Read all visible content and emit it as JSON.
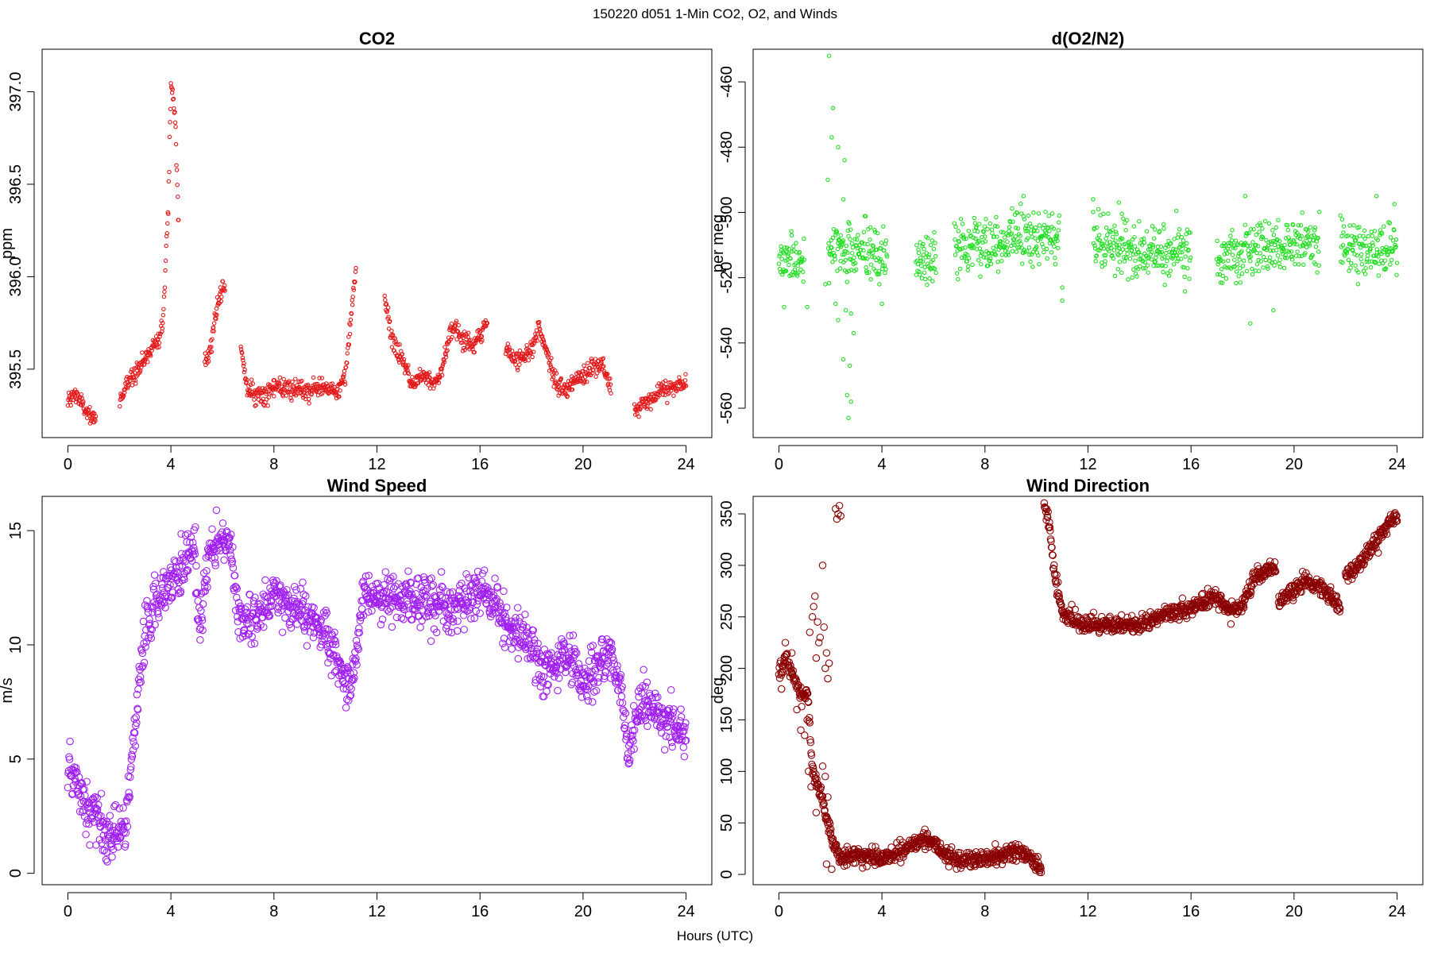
{
  "figure": {
    "suptitle": "150220   d051   1-Min CO2, O2, and Winds",
    "shared_xlabel": "Hours (UTC)"
  },
  "chart_data": [
    {
      "id": "co2",
      "type": "scatter",
      "title": "CO2",
      "xlabel": "",
      "ylabel": "ppm",
      "xlim": [
        -1,
        25
      ],
      "ylim": [
        395.13,
        397.23
      ],
      "xticks": [
        0,
        4,
        8,
        12,
        16,
        20,
        24
      ],
      "yticks": [
        395.5,
        396.0,
        396.5,
        397.0
      ],
      "ytick_labels": [
        "395.5",
        "396.0",
        "396.5",
        "397.0"
      ],
      "marker": "small-open-circle",
      "color": "#e31a1c",
      "anchors": [
        [
          0.0,
          395.32
        ],
        [
          0.3,
          395.37
        ],
        [
          0.6,
          395.3
        ],
        [
          0.9,
          395.22
        ],
        [
          1.1,
          395.25
        ],
        [
          2.0,
          395.33
        ],
        [
          2.5,
          395.47
        ],
        [
          3.0,
          395.55
        ],
        [
          3.3,
          395.63
        ],
        [
          3.5,
          395.67
        ],
        [
          3.7,
          395.76
        ],
        [
          3.9,
          396.4
        ],
        [
          4.0,
          397.05
        ],
        [
          4.15,
          396.9
        ],
        [
          4.3,
          396.3
        ],
        [
          5.3,
          395.52
        ],
        [
          5.6,
          395.65
        ],
        [
          5.8,
          395.85
        ],
        [
          6.0,
          395.96
        ],
        [
          6.1,
          395.92
        ],
        [
          6.7,
          395.62
        ],
        [
          7.0,
          395.38
        ],
        [
          7.5,
          395.36
        ],
        [
          8.0,
          395.4
        ],
        [
          9.0,
          395.38
        ],
        [
          10.0,
          395.4
        ],
        [
          10.5,
          395.38
        ],
        [
          10.8,
          395.48
        ],
        [
          11.0,
          395.8
        ],
        [
          11.2,
          396.05
        ],
        [
          12.3,
          395.88
        ],
        [
          12.6,
          395.65
        ],
        [
          13.0,
          395.55
        ],
        [
          13.4,
          395.41
        ],
        [
          13.8,
          395.48
        ],
        [
          14.2,
          395.43
        ],
        [
          14.5,
          395.48
        ],
        [
          14.8,
          395.68
        ],
        [
          15.0,
          395.73
        ],
        [
          15.4,
          395.65
        ],
        [
          15.8,
          395.63
        ],
        [
          16.1,
          395.72
        ],
        [
          16.3,
          395.76
        ],
        [
          17.0,
          395.59
        ],
        [
          17.5,
          395.55
        ],
        [
          18.0,
          395.62
        ],
        [
          18.3,
          395.72
        ],
        [
          18.6,
          395.6
        ],
        [
          18.9,
          395.43
        ],
        [
          19.3,
          395.38
        ],
        [
          19.8,
          395.45
        ],
        [
          20.3,
          395.5
        ],
        [
          20.7,
          395.53
        ],
        [
          21.0,
          395.42
        ],
        [
          21.1,
          395.4
        ],
        [
          22.0,
          395.28
        ],
        [
          22.5,
          395.33
        ],
        [
          23.0,
          395.38
        ],
        [
          23.5,
          395.4
        ],
        [
          24.0,
          395.42
        ]
      ],
      "gaps": [
        [
          1.1,
          2.0
        ],
        [
          4.3,
          5.3
        ],
        [
          6.1,
          6.7
        ],
        [
          11.2,
          12.3
        ],
        [
          16.3,
          17.0
        ],
        [
          21.1,
          22.0
        ]
      ],
      "noise": 0.025
    },
    {
      "id": "o2",
      "type": "scatter",
      "title": "d(O2/N2)",
      "xlabel": "",
      "ylabel": "per meg",
      "xlim": [
        -1,
        25
      ],
      "ylim": [
        -569,
        -450
      ],
      "xticks": [
        0,
        4,
        8,
        12,
        16,
        20,
        24
      ],
      "yticks": [
        -560,
        -540,
        -520,
        -500,
        -480,
        -460
      ],
      "ytick_labels": [
        "-560",
        "-540",
        "-520",
        "-500",
        "-480",
        "-460"
      ],
      "marker": "small-open-circle",
      "color": "#22dd22",
      "anchors": [
        [
          0.0,
          -514
        ],
        [
          0.5,
          -514
        ],
        [
          1.0,
          -516
        ],
        [
          1.9,
          -512
        ],
        [
          2.2,
          -510
        ],
        [
          2.5,
          -512
        ],
        [
          3.0,
          -513
        ],
        [
          3.5,
          -512
        ],
        [
          4.2,
          -515
        ],
        [
          5.3,
          -515
        ],
        [
          5.7,
          -514
        ],
        [
          6.1,
          -515
        ],
        [
          6.8,
          -511
        ],
        [
          8.0,
          -509
        ],
        [
          9.0,
          -508
        ],
        [
          10.0,
          -507
        ],
        [
          10.9,
          -508
        ],
        [
          12.2,
          -508
        ],
        [
          13.0,
          -510
        ],
        [
          14.0,
          -512
        ],
        [
          15.0,
          -513
        ],
        [
          16.0,
          -513
        ],
        [
          17.0,
          -515
        ],
        [
          18.0,
          -513
        ],
        [
          19.0,
          -511
        ],
        [
          20.0,
          -510
        ],
        [
          21.0,
          -510
        ],
        [
          21.8,
          -509
        ],
        [
          22.5,
          -510
        ],
        [
          23.2,
          -511
        ],
        [
          24.0,
          -511
        ]
      ],
      "gaps": [
        [
          1.0,
          1.9
        ],
        [
          4.2,
          5.3
        ],
        [
          6.1,
          6.8
        ],
        [
          10.9,
          12.2
        ],
        [
          16.0,
          17.0
        ],
        [
          21.0,
          21.8
        ]
      ],
      "noise": 4.2,
      "extra_points": [
        [
          1.95,
          -452
        ],
        [
          2.1,
          -468
        ],
        [
          2.05,
          -477
        ],
        [
          2.3,
          -480
        ],
        [
          2.55,
          -484
        ],
        [
          2.5,
          -496
        ],
        [
          1.9,
          -490
        ],
        [
          2.4,
          -507
        ],
        [
          2.7,
          -503
        ],
        [
          2.2,
          -528
        ],
        [
          2.3,
          -533
        ],
        [
          2.6,
          -530
        ],
        [
          2.8,
          -531
        ],
        [
          2.5,
          -545
        ],
        [
          2.75,
          -547
        ],
        [
          2.65,
          -556
        ],
        [
          2.8,
          -558
        ],
        [
          2.7,
          -563
        ],
        [
          2.9,
          -537
        ],
        [
          1.8,
          -522
        ],
        [
          11.0,
          -527
        ],
        [
          11.0,
          -523
        ],
        [
          0.2,
          -529
        ],
        [
          1.1,
          -529
        ],
        [
          4.0,
          -528
        ],
        [
          3.9,
          -522
        ],
        [
          18.3,
          -534
        ],
        [
          19.2,
          -530
        ],
        [
          18.1,
          -495
        ],
        [
          9.5,
          -495
        ],
        [
          23.2,
          -495
        ],
        [
          13.2,
          -497
        ],
        [
          12.2,
          -496
        ]
      ]
    },
    {
      "id": "wind-speed",
      "type": "scatter",
      "title": "Wind Speed",
      "xlabel": "",
      "ylabel": "m/s",
      "xlim": [
        -1,
        25
      ],
      "ylim": [
        -0.5,
        16.5
      ],
      "xticks": [
        0,
        4,
        8,
        12,
        16,
        20,
        24
      ],
      "yticks": [
        0,
        5,
        10,
        15
      ],
      "ytick_labels": [
        "0",
        "5",
        "10",
        "15"
      ],
      "marker": "large-open-circle",
      "color": "#a020f0",
      "anchors": [
        [
          0.0,
          4.5
        ],
        [
          0.5,
          3.5
        ],
        [
          1.0,
          2.5
        ],
        [
          1.5,
          1.5
        ],
        [
          2.0,
          1.5
        ],
        [
          2.3,
          2.5
        ],
        [
          2.5,
          5.0
        ],
        [
          2.8,
          9.0
        ],
        [
          3.0,
          10.5
        ],
        [
          3.5,
          12.0
        ],
        [
          4.0,
          12.5
        ],
        [
          4.5,
          13.5
        ],
        [
          4.9,
          14.5
        ],
        [
          5.1,
          10.5
        ],
        [
          5.5,
          14.0
        ],
        [
          6.0,
          14.5
        ],
        [
          6.3,
          14.5
        ],
        [
          6.6,
          11.5
        ],
        [
          7.0,
          11.0
        ],
        [
          8.0,
          12.0
        ],
        [
          9.0,
          11.5
        ],
        [
          10.0,
          10.5
        ],
        [
          10.5,
          9.0
        ],
        [
          11.0,
          8.0
        ],
        [
          11.5,
          12.5
        ],
        [
          12.0,
          12.0
        ],
        [
          13.0,
          12.0
        ],
        [
          14.0,
          12.0
        ],
        [
          15.0,
          11.5
        ],
        [
          16.0,
          12.5
        ],
        [
          16.5,
          12.0
        ],
        [
          17.0,
          11.0
        ],
        [
          17.5,
          10.5
        ],
        [
          18.0,
          10.0
        ],
        [
          18.5,
          9.0
        ],
        [
          19.0,
          9.0
        ],
        [
          19.5,
          9.5
        ],
        [
          20.0,
          8.5
        ],
        [
          20.5,
          9.0
        ],
        [
          21.0,
          9.5
        ],
        [
          21.5,
          8.0
        ],
        [
          21.8,
          5.0
        ],
        [
          22.2,
          7.5
        ],
        [
          23.0,
          7.0
        ],
        [
          23.5,
          6.5
        ],
        [
          24.0,
          6.0
        ]
      ],
      "gaps": [],
      "noise": 0.55
    },
    {
      "id": "wind-direction",
      "type": "scatter",
      "title": "Wind Direction",
      "xlabel": "",
      "ylabel": "deg",
      "xlim": [
        -1,
        25
      ],
      "ylim": [
        -10,
        367
      ],
      "xticks": [
        0,
        4,
        8,
        12,
        16,
        20,
        24
      ],
      "yticks": [
        0,
        50,
        100,
        150,
        200,
        250,
        300,
        350
      ],
      "ytick_labels": [
        "0",
        "50",
        "100",
        "150",
        "200",
        "250",
        "300",
        "350"
      ],
      "marker": "large-open-circle",
      "color": "#8b0000",
      "anchors": [
        [
          0.0,
          195
        ],
        [
          0.3,
          210
        ],
        [
          0.6,
          190
        ],
        [
          0.9,
          170
        ],
        [
          1.1,
          180
        ],
        [
          1.3,
          100
        ],
        [
          1.6,
          80
        ],
        [
          1.9,
          50
        ],
        [
          2.1,
          30
        ],
        [
          2.4,
          15
        ],
        [
          3.0,
          20
        ],
        [
          4.0,
          15
        ],
        [
          5.0,
          25
        ],
        [
          5.5,
          35
        ],
        [
          6.0,
          32
        ],
        [
          6.5,
          18
        ],
        [
          7.0,
          15
        ],
        [
          8.0,
          15
        ],
        [
          9.0,
          22
        ],
        [
          9.5,
          22
        ],
        [
          10.0,
          10
        ],
        [
          10.2,
          3
        ],
        [
          10.3,
          355
        ],
        [
          10.5,
          340
        ],
        [
          10.7,
          290
        ],
        [
          11.0,
          255
        ],
        [
          11.5,
          245
        ],
        [
          12.0,
          243
        ],
        [
          13.0,
          242
        ],
        [
          14.0,
          242
        ],
        [
          15.0,
          252
        ],
        [
          16.0,
          258
        ],
        [
          16.5,
          265
        ],
        [
          17.0,
          270
        ],
        [
          17.5,
          255
        ],
        [
          18.0,
          262
        ],
        [
          18.5,
          290
        ],
        [
          19.0,
          295
        ],
        [
          19.3,
          298
        ],
        [
          19.4,
          265
        ],
        [
          20.0,
          275
        ],
        [
          20.5,
          285
        ],
        [
          21.0,
          278
        ],
        [
          21.5,
          270
        ],
        [
          21.8,
          255
        ],
        [
          22.0,
          290
        ],
        [
          22.5,
          300
        ],
        [
          23.0,
          318
        ],
        [
          23.5,
          335
        ],
        [
          24.0,
          348
        ]
      ],
      "gaps": [
        [
          10.2,
          10.3
        ],
        [
          19.3,
          19.4
        ],
        [
          21.8,
          22.0
        ]
      ],
      "noise": 4.0,
      "extra_points": [
        [
          1.2,
          235
        ],
        [
          1.3,
          250
        ],
        [
          1.35,
          260
        ],
        [
          1.4,
          270
        ],
        [
          1.5,
          245
        ],
        [
          1.6,
          230
        ],
        [
          1.7,
          300
        ],
        [
          1.75,
          240
        ],
        [
          1.8,
          200
        ],
        [
          1.85,
          215
        ],
        [
          1.9,
          190
        ],
        [
          1.95,
          205
        ],
        [
          1.55,
          225
        ],
        [
          1.45,
          210
        ],
        [
          2.2,
          355
        ],
        [
          2.25,
          345
        ],
        [
          2.3,
          350
        ],
        [
          2.35,
          358
        ],
        [
          2.4,
          348
        ],
        [
          0.1,
          180
        ],
        [
          0.25,
          225
        ],
        [
          0.5,
          215
        ],
        [
          0.7,
          160
        ],
        [
          0.85,
          140
        ],
        [
          1.0,
          135
        ],
        [
          1.1,
          150
        ],
        [
          1.15,
          100
        ],
        [
          1.25,
          85
        ],
        [
          1.45,
          60
        ],
        [
          1.7,
          105
        ],
        [
          1.8,
          95
        ],
        [
          1.9,
          75
        ],
        [
          2.0,
          40
        ],
        [
          1.85,
          10
        ],
        [
          2.05,
          5
        ]
      ]
    }
  ]
}
